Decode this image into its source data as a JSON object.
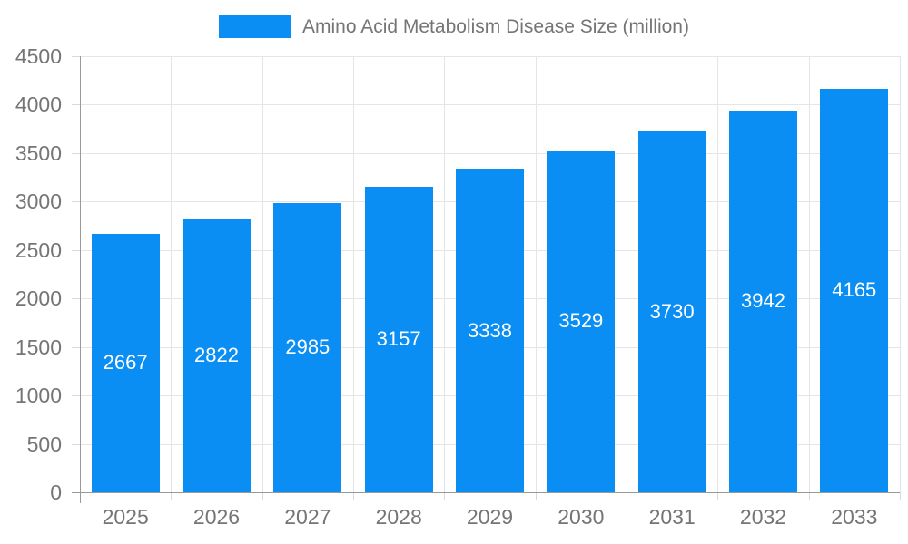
{
  "chart_data": {
    "type": "bar",
    "title": "Amino Acid Metabolism Disease Size (million)",
    "legend_entries": [
      "Amino Acid Metabolism Disease Size (million)"
    ],
    "legend_position": "top-center",
    "categories": [
      "2025",
      "2026",
      "2027",
      "2028",
      "2029",
      "2030",
      "2031",
      "2032",
      "2033"
    ],
    "series": [
      {
        "name": "Amino Acid Metabolism Disease Size (million)",
        "values": [
          2667,
          2822,
          2985,
          3157,
          3338,
          3529,
          3730,
          3942,
          4165
        ]
      }
    ],
    "value_labels_visible": true,
    "value_label_position": "inside-center",
    "xlabel": "",
    "ylabel": "",
    "ylim": [
      0,
      4500
    ],
    "ytick_step": 500,
    "ytick_labels": [
      "0",
      "500",
      "1000",
      "1500",
      "2000",
      "2500",
      "3000",
      "3500",
      "4000",
      "4500"
    ],
    "grid": true,
    "colors": {
      "bar": "#0a8ef4",
      "value_label": "#ffffff",
      "axis_text": "#757575",
      "legend_text": "#757575",
      "gridline": "#e5e5e5",
      "tick": "#d9d9d9",
      "axis_line": "#999999",
      "background": "#ffffff"
    }
  }
}
